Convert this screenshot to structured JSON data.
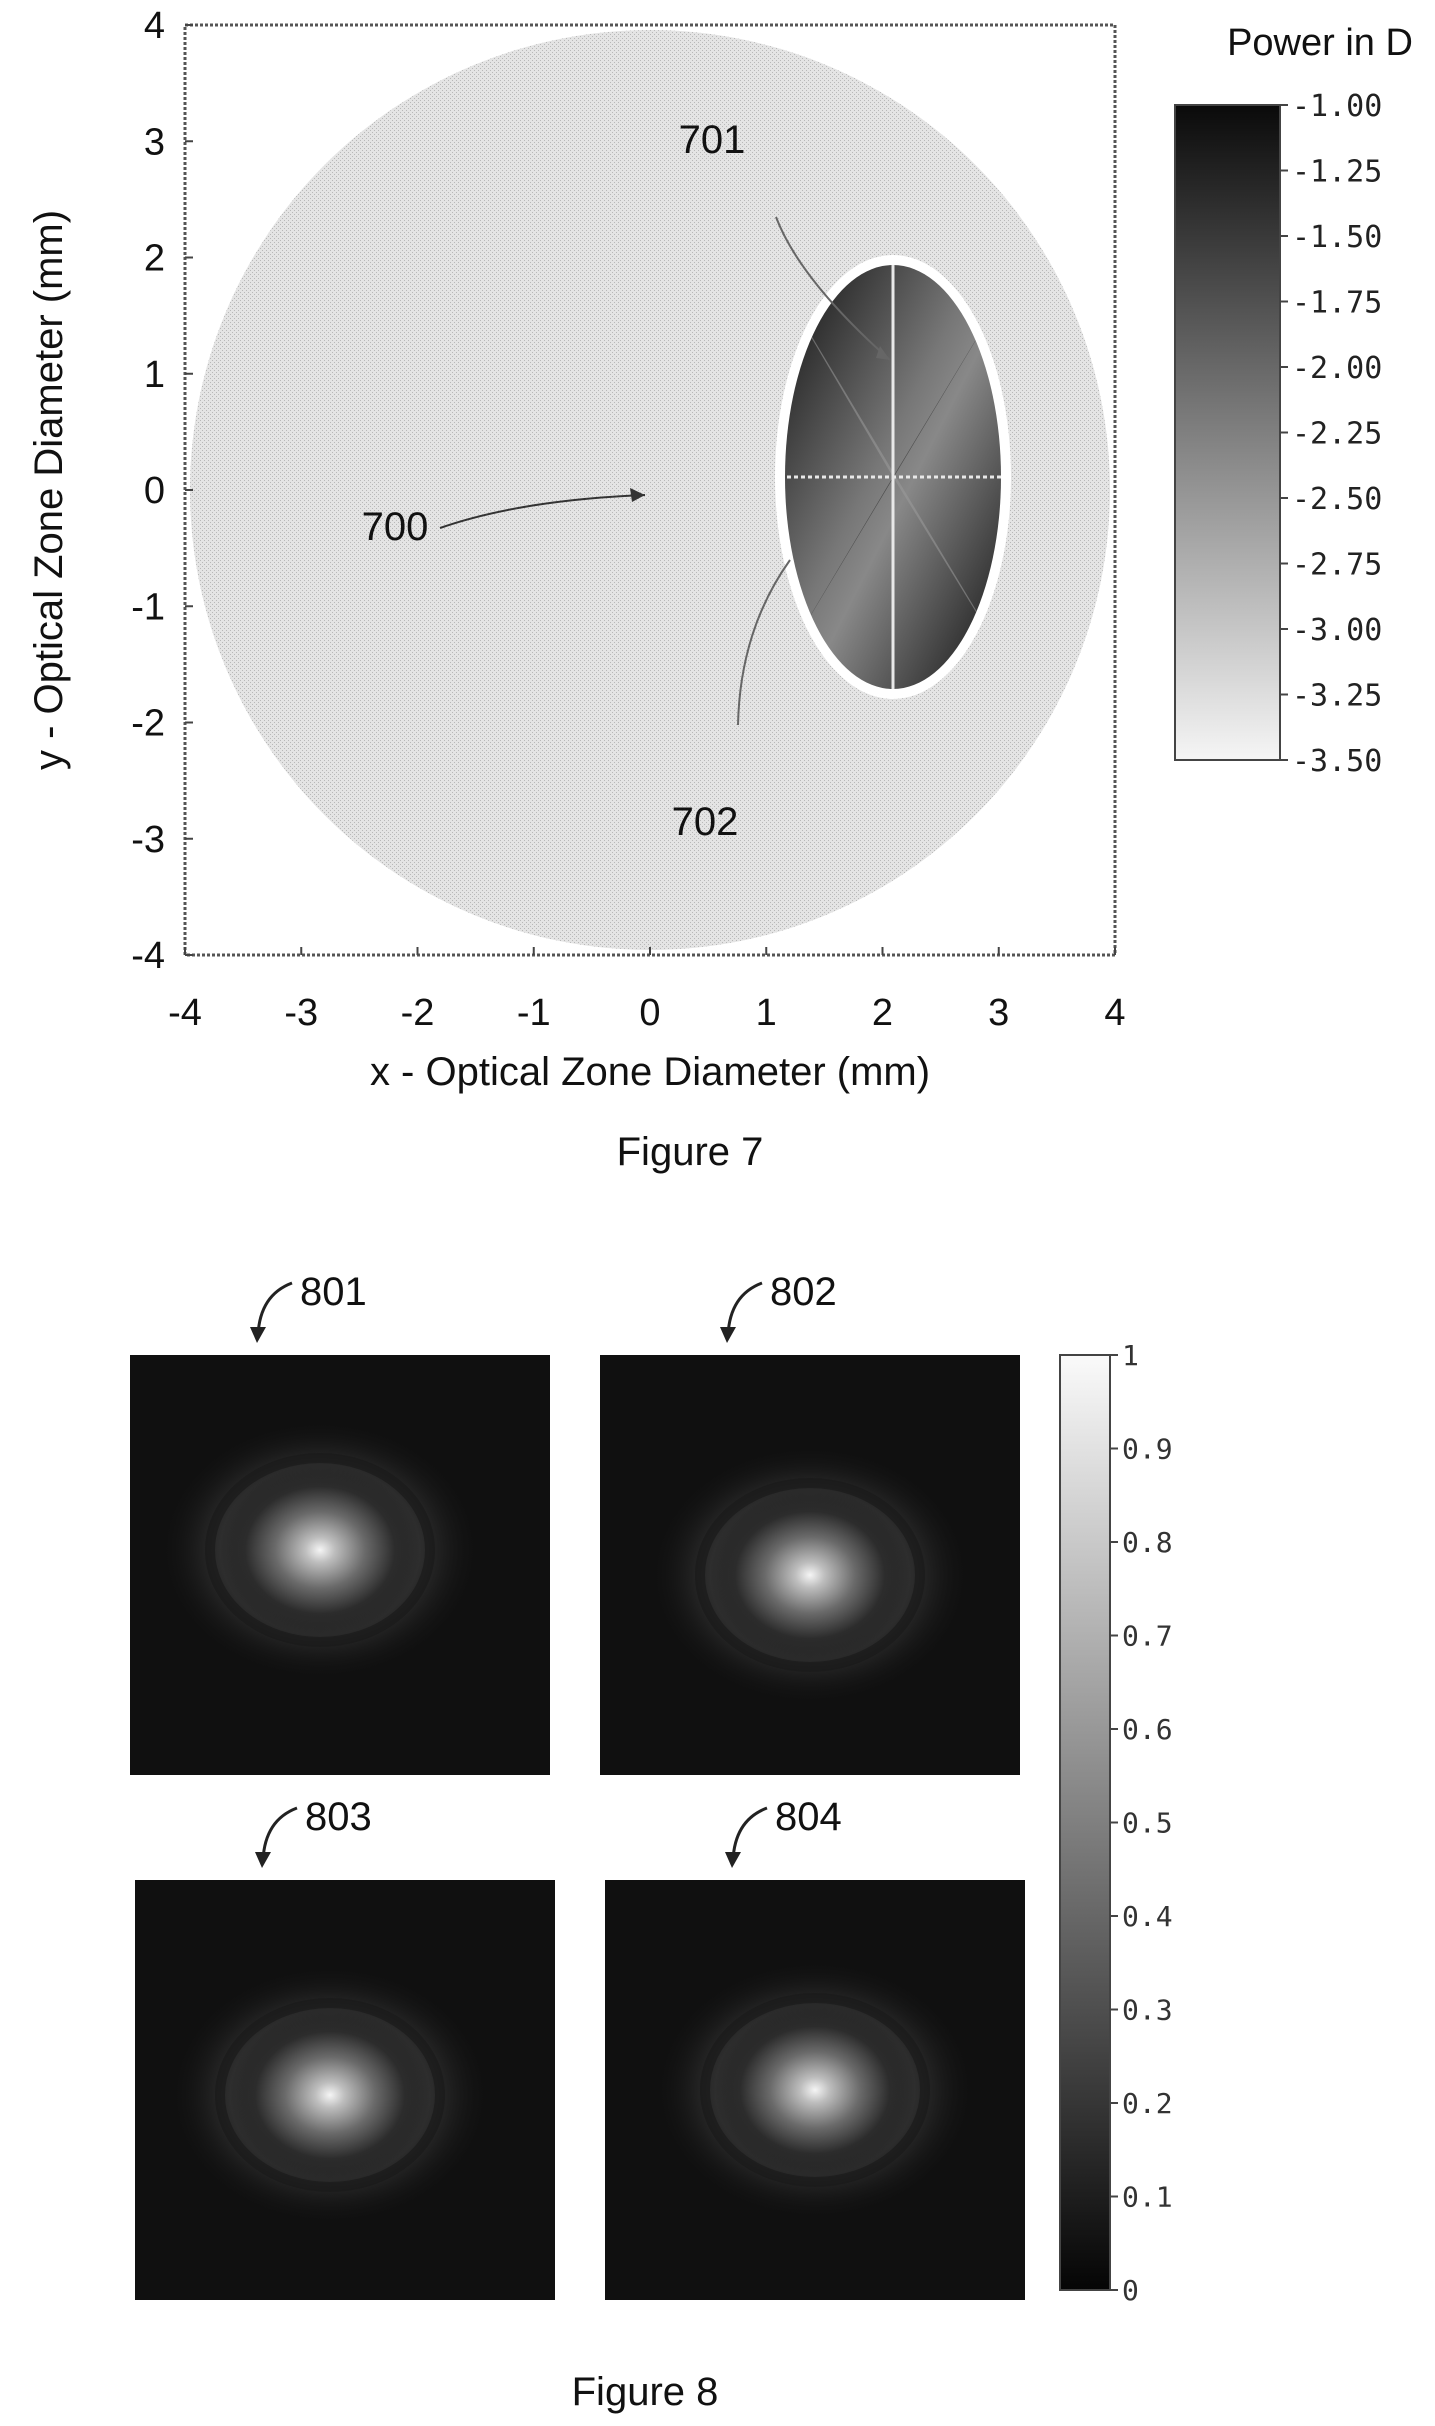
{
  "figure7": {
    "caption": "Figure 7",
    "xlabel": "x - Optical Zone Diameter (mm)",
    "ylabel": "y - Optical Zone Diameter (mm)",
    "x_ticks": [
      "-4",
      "-3",
      "-2",
      "-1",
      "0",
      "1",
      "2",
      "3",
      "4"
    ],
    "y_ticks": [
      "4",
      "3",
      "2",
      "1",
      "0",
      "-1",
      "-2",
      "-3",
      "-4"
    ],
    "colorbar_title": "Power in D",
    "colorbar_ticks": [
      "-1.00",
      "-1.25",
      "-1.50",
      "-1.75",
      "-2.00",
      "-2.25",
      "-2.50",
      "-2.75",
      "-3.00",
      "-3.25",
      "-3.50"
    ],
    "labels": {
      "l700": "700",
      "l701": "701",
      "l702": "702"
    }
  },
  "figure8": {
    "caption": "Figure 8",
    "panels": [
      {
        "label": "801"
      },
      {
        "label": "802"
      },
      {
        "label": "803"
      },
      {
        "label": "804"
      }
    ],
    "colorbar_ticks": [
      "1",
      "0.9",
      "0.8",
      "0.7",
      "0.6",
      "0.5",
      "0.4",
      "0.3",
      "0.2",
      "0.1",
      "0"
    ]
  },
  "chart_data": [
    {
      "type": "heatmap",
      "title": "",
      "xlabel": "x - Optical Zone Diameter (mm)",
      "ylabel": "y - Optical Zone Diameter (mm)",
      "xlim": [
        -4,
        4
      ],
      "ylim": [
        -4,
        4
      ],
      "colorbar": {
        "label": "Power in D",
        "range": [
          -3.5,
          -1.0
        ]
      },
      "regions": [
        {
          "id": "700",
          "shape": "circle",
          "center": [
            0,
            0
          ],
          "diameter": 8,
          "power": -3.0
        },
        {
          "id": "701",
          "shape": "ellipse",
          "center": [
            2,
            0.2
          ],
          "semi_axes": [
            0.95,
            1.9
          ],
          "power_range": [
            -3.5,
            -1.0
          ]
        }
      ]
    },
    {
      "type": "heatmap",
      "title": "",
      "panels": [
        "801",
        "802",
        "803",
        "804"
      ],
      "colorbar": {
        "range": [
          0,
          1
        ]
      }
    }
  ]
}
